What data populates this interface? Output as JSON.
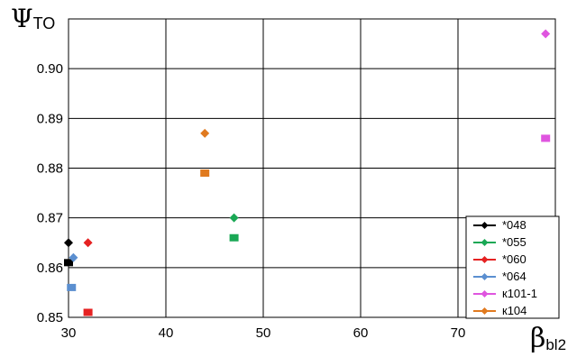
{
  "chart_data": {
    "type": "scatter",
    "ylabel": {
      "main": "Ψ",
      "sub": "TO"
    },
    "xlabel": {
      "main": "β",
      "sub": "bl2"
    },
    "xlim": [
      30,
      79
    ],
    "ylim": [
      0.85,
      0.9
    ],
    "x_ticks": [
      30,
      40,
      50,
      60,
      70
    ],
    "y_ticks": [
      "0.85",
      "0.86",
      "0.87",
      "0.88",
      "0.89",
      "0.90"
    ],
    "grid": true,
    "legend_position": "bottom-right",
    "series": [
      {
        "name": "*048",
        "color": "#000000",
        "diamond": {
          "x": 30.0,
          "y": 0.865
        },
        "square": {
          "x": 30.0,
          "y": 0.861
        }
      },
      {
        "name": "*055",
        "color": "#1aa855",
        "diamond": {
          "x": 47.0,
          "y": 0.87
        },
        "square": {
          "x": 47.0,
          "y": 0.866
        }
      },
      {
        "name": "*060",
        "color": "#e52222",
        "diamond": {
          "x": 32.0,
          "y": 0.865
        },
        "square": {
          "x": 32.0,
          "y": 0.851
        }
      },
      {
        "name": "*064",
        "color": "#5b8fd0",
        "diamond": {
          "x": 30.5,
          "y": 0.862
        },
        "square": {
          "x": 30.3,
          "y": 0.856
        }
      },
      {
        "name": "к101-1",
        "color": "#df55df",
        "diamond": {
          "x": 79.0,
          "y": 0.907
        },
        "square": {
          "x": 79.0,
          "y": 0.886
        }
      },
      {
        "name": "к104",
        "color": "#e07a1f",
        "diamond": {
          "x": 44.0,
          "y": 0.887
        },
        "square": {
          "x": 44.0,
          "y": 0.879
        }
      }
    ]
  }
}
